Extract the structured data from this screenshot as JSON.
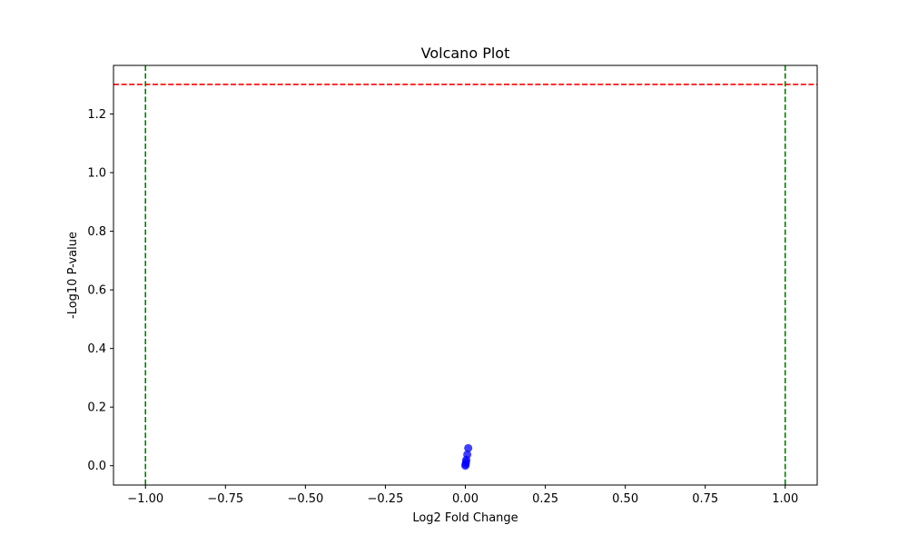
{
  "chart_data": {
    "type": "scatter",
    "title": "Volcano Plot",
    "xlabel": "Log2 Fold Change",
    "ylabel": "-Log10 P-value",
    "xlim": [
      -1.1,
      1.1
    ],
    "ylim": [
      -0.066,
      1.366
    ],
    "xticks": [
      -1.0,
      -0.75,
      -0.5,
      -0.25,
      0.0,
      0.25,
      0.5,
      0.75,
      1.0
    ],
    "xtick_labels": [
      "−1.00",
      "−0.75",
      "−0.50",
      "−0.25",
      "0.00",
      "0.25",
      "0.50",
      "0.75",
      "1.00"
    ],
    "yticks": [
      0.0,
      0.2,
      0.4,
      0.6,
      0.8,
      1.0,
      1.2
    ],
    "ytick_labels": [
      "0.0",
      "0.2",
      "0.4",
      "0.6",
      "0.8",
      "1.0",
      "1.2"
    ],
    "grid": false,
    "legend": "none",
    "series": [
      {
        "color": "#0000ff",
        "points": [
          {
            "x": 0.0,
            "y": 0.0
          },
          {
            "x": 0.001,
            "y": 0.005
          },
          {
            "x": 0.002,
            "y": 0.012
          },
          {
            "x": 0.003,
            "y": 0.02
          },
          {
            "x": 0.006,
            "y": 0.038
          },
          {
            "x": 0.009,
            "y": 0.06
          }
        ]
      }
    ],
    "reference_lines": [
      {
        "orientation": "horizontal",
        "value": 1.301,
        "color": "#ff0000",
        "style": "dashed"
      },
      {
        "orientation": "vertical",
        "value": -1.0,
        "color": "#008000",
        "style": "dashed"
      },
      {
        "orientation": "vertical",
        "value": 1.0,
        "color": "#008000",
        "style": "dashed"
      }
    ]
  }
}
